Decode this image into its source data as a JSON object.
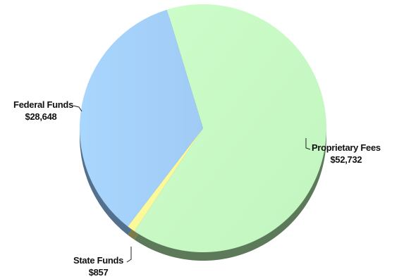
{
  "chart_data": {
    "type": "pie",
    "slices": [
      {
        "label": "Proprietary Fees",
        "value_label": "$52,732",
        "value": 52732,
        "color": "#c9fcc6",
        "shade": "#5c7a5a"
      },
      {
        "label": "State Funds",
        "value_label": "$857",
        "value": 857,
        "color": "#fcf99b",
        "shade": "#7d7b4a"
      },
      {
        "label": "Federal Funds",
        "value_label": "$28,648",
        "value": 28648,
        "color": "#a8d3fb",
        "shade": "#53718e"
      }
    ],
    "style": "3d-tilted"
  }
}
